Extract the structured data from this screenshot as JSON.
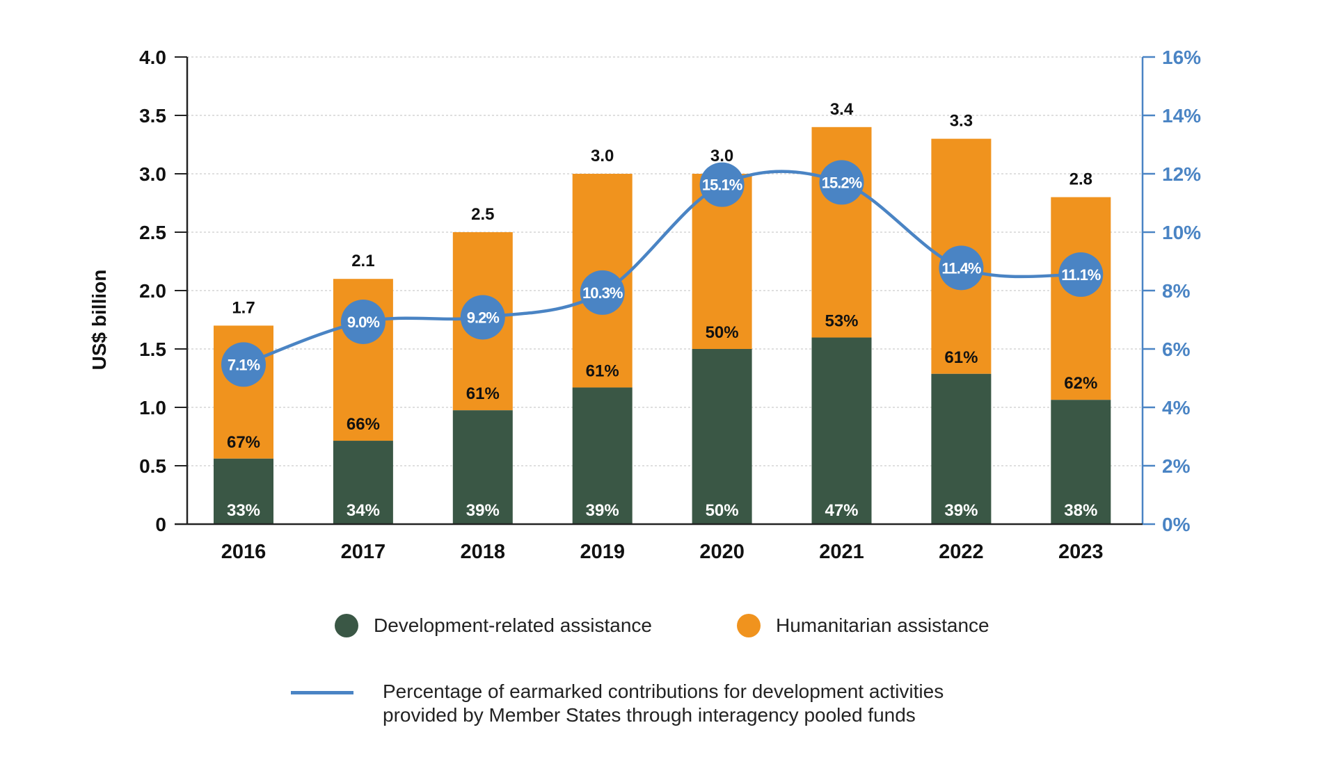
{
  "chart_data": {
    "type": "bar",
    "stacked": true,
    "categories": [
      "2016",
      "2017",
      "2018",
      "2019",
      "2020",
      "2021",
      "2022",
      "2023"
    ],
    "totals": [
      1.7,
      2.1,
      2.5,
      3.0,
      3.0,
      3.4,
      3.3,
      2.8
    ],
    "total_labels": [
      "1.7",
      "2.1",
      "2.5",
      "3.0",
      "3.0",
      "3.4",
      "3.3",
      "2.8"
    ],
    "series": [
      {
        "name": "Development-related assistance",
        "color": "#3A5745",
        "share_labels": [
          "33%",
          "34%",
          "39%",
          "39%",
          "50%",
          "47%",
          "39%",
          "38%"
        ],
        "shares": [
          33,
          34,
          39,
          39,
          50,
          47,
          39,
          38
        ]
      },
      {
        "name": "Humanitarian assistance",
        "color": "#F0931E",
        "share_labels": [
          "67%",
          "66%",
          "61%",
          "61%",
          "50%",
          "53%",
          "61%",
          "62%"
        ],
        "shares": [
          67,
          66,
          61,
          61,
          50,
          53,
          61,
          62
        ]
      }
    ],
    "line": {
      "name": "Percentage of earmarked contributions for development activities provided by Member States through interagency pooled funds",
      "name_lines": [
        "Percentage of earmarked contributions for development activities",
        "provided by Member States through interagency pooled funds"
      ],
      "color": "#4A84C4",
      "values": [
        7.1,
        9.0,
        9.2,
        10.3,
        15.1,
        15.2,
        11.4,
        11.1
      ],
      "labels": [
        "7.1%",
        "9.0%",
        "9.2%",
        "10.3%",
        "15.1%",
        "15.2%",
        "11.4%",
        "11.1%"
      ]
    },
    "ylabel": "US$ billion",
    "ylim": [
      0,
      4.0
    ],
    "yticks": [
      "0",
      "0.5",
      "1.0",
      "1.5",
      "2.0",
      "2.5",
      "3.0",
      "3.5",
      "4.0"
    ],
    "y2lim": [
      0,
      16
    ],
    "y2ticks": [
      "0%",
      "2%",
      "4%",
      "6%",
      "8%",
      "10%",
      "12%",
      "14%",
      "16%"
    ],
    "grid": true,
    "legend_position": "bottom"
  }
}
